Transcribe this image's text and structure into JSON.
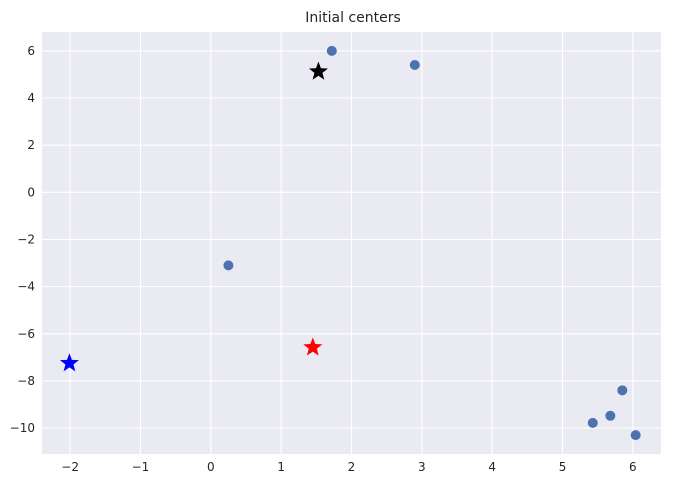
{
  "chart_data": {
    "type": "scatter",
    "title": "Initial centers",
    "xlabel": "",
    "ylabel": "",
    "xlim": [
      -2.4,
      6.4
    ],
    "ylim": [
      -11.1,
      6.8
    ],
    "x_ticks": [
      -2,
      -1,
      0,
      1,
      2,
      3,
      4,
      5,
      6
    ],
    "y_ticks": [
      6,
      4,
      2,
      0,
      -2,
      -4,
      -6,
      -8,
      -10
    ],
    "grid": true,
    "background_color": "#eaeaf2",
    "series": [
      {
        "marker": "circle",
        "color": "#4c72b0",
        "points": [
          {
            "x": 1.72,
            "y": 6.0
          },
          {
            "x": 2.9,
            "y": 5.4
          },
          {
            "x": 0.25,
            "y": -3.1
          },
          {
            "x": 5.85,
            "y": -8.4
          },
          {
            "x": 5.68,
            "y": -9.48
          },
          {
            "x": 5.43,
            "y": -9.78
          },
          {
            "x": 6.04,
            "y": -10.3
          }
        ]
      },
      {
        "marker": "star",
        "color": "#000000",
        "points": [
          {
            "x": 1.53,
            "y": 5.12
          }
        ]
      },
      {
        "marker": "star",
        "color": "#ff0000",
        "points": [
          {
            "x": 1.45,
            "y": -6.58
          }
        ]
      },
      {
        "marker": "star",
        "color": "#0000ff",
        "points": [
          {
            "x": -2.01,
            "y": -7.25
          }
        ]
      }
    ]
  }
}
